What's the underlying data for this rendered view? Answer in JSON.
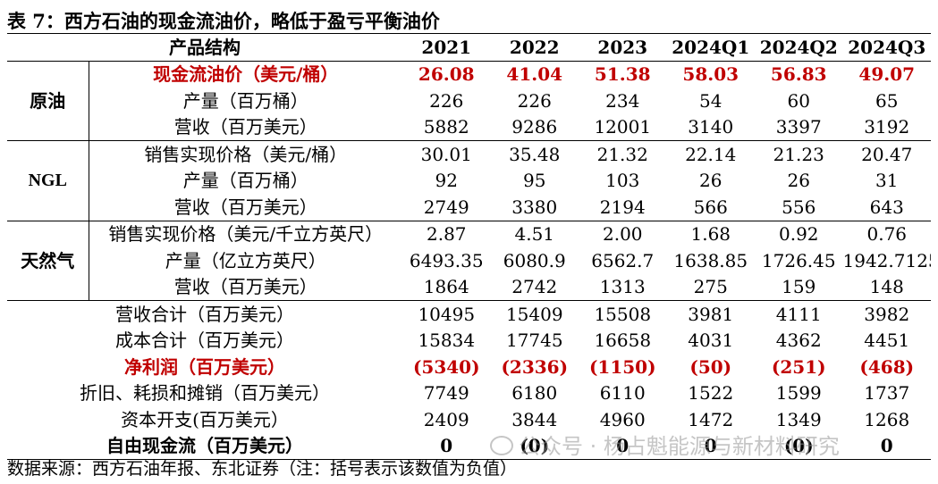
{
  "title": "表 7：西方石油的现金流油价，略低于盈亏平衡油价",
  "headers": [
    "产品结构",
    "2021",
    "2022",
    "2023",
    "2024Q1",
    "2024Q2",
    "2024Q3"
  ],
  "crude": {
    "group": "原油",
    "rows": [
      {
        "label": "现金流油价（美元/桶）",
        "values": [
          "26.08",
          "41.04",
          "51.38",
          "58.03",
          "56.83",
          "49.07"
        ]
      },
      {
        "label": "产量（百万桶）",
        "values": [
          "226",
          "226",
          "234",
          "54",
          "60",
          "65"
        ]
      },
      {
        "label": "营收（百万美元）",
        "values": [
          "5882",
          "9286",
          "12001",
          "3140",
          "3397",
          "3192"
        ]
      }
    ]
  },
  "ngl": {
    "group": "NGL",
    "rows": [
      {
        "label": "销售实现价格（美元/桶）",
        "values": [
          "30.01",
          "35.48",
          "21.32",
          "22.14",
          "21.23",
          "20.47"
        ]
      },
      {
        "label": "产量（百万桶）",
        "values": [
          "92",
          "95",
          "103",
          "26",
          "26",
          "31"
        ]
      },
      {
        "label": "营收（百万美元）",
        "values": [
          "2749",
          "3380",
          "2194",
          "566",
          "556",
          "643"
        ]
      }
    ]
  },
  "gas": {
    "group": "天然气",
    "rows": [
      {
        "label": "销售实现价格（美元/千立方英尺）",
        "values": [
          "2.87",
          "4.51",
          "2.00",
          "1.68",
          "0.92",
          "0.76"
        ]
      },
      {
        "label": "产量（亿立方英尺）",
        "values": [
          "6493.35",
          "6080.9",
          "6562.7",
          "1638.85",
          "1726.45",
          "1942.7125"
        ]
      },
      {
        "label": "营收（百万美元）",
        "values": [
          "1864",
          "2742",
          "1313",
          "275",
          "159",
          "148"
        ]
      }
    ]
  },
  "totals": [
    {
      "label": "营收合计（百万美元）",
      "values": [
        "10495",
        "15409",
        "15508",
        "3981",
        "4111",
        "3982"
      ]
    },
    {
      "label": "成本合计（百万美元）",
      "values": [
        "15834",
        "17745",
        "16658",
        "4031",
        "4362",
        "4451"
      ]
    },
    {
      "label": "净利润（百万美元）",
      "values": [
        "(5340)",
        "(2336)",
        "(1150)",
        "(50)",
        "(251)",
        "(468)"
      ]
    },
    {
      "label": "折旧、耗损和摊销（百万美元）",
      "values": [
        "7749",
        "6180",
        "6110",
        "1522",
        "1599",
        "1737"
      ]
    },
    {
      "label": "资本开支(百万美元）",
      "values": [
        "2409",
        "3844",
        "4960",
        "1472",
        "1349",
        "1268"
      ]
    },
    {
      "label": "自由现金流（百万美元）",
      "values": [
        "0",
        "(0)",
        "0",
        "0",
        "(0)",
        "0"
      ]
    }
  ],
  "source": "数据来源：西方石油年报、东北证券（注：括号表示该数值为负值）",
  "watermark": "公众号 · 杨占魁能源与新材料研究",
  "colors": {
    "highlight": "#c00000",
    "text": "#000000"
  }
}
